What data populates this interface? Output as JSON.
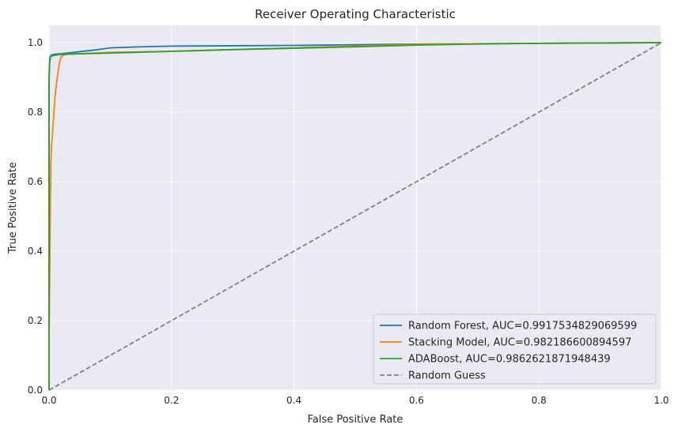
{
  "chart_data": {
    "type": "line",
    "title": "Receiver Operating Characteristic",
    "xlabel": "False Positive Rate",
    "ylabel": "True Positive Rate",
    "xlim": [
      0.0,
      1.0
    ],
    "ylim": [
      0.0,
      1.05
    ],
    "x_ticks": [
      0.0,
      0.2,
      0.4,
      0.6,
      0.8,
      1.0
    ],
    "y_ticks": [
      0.0,
      0.2,
      0.4,
      0.6,
      0.8,
      1.0
    ],
    "x_tick_labels": [
      "0.0",
      "0.2",
      "0.4",
      "0.6",
      "0.8",
      "1.0"
    ],
    "y_tick_labels": [
      "0.0",
      "0.2",
      "0.4",
      "0.6",
      "0.8",
      "1.0"
    ],
    "grid": true,
    "legend_position": "lower-right",
    "series": [
      {
        "name": "Random Forest, AUC=0.9917534829069599",
        "color": "#1f77b4",
        "dashed": false,
        "x": [
          0.0,
          0.0,
          0.001,
          0.002,
          0.003,
          0.005,
          0.01,
          0.02,
          0.03,
          0.04,
          0.05,
          0.06,
          0.07,
          0.08,
          0.1,
          0.15,
          0.2,
          0.3,
          0.4,
          0.5,
          0.6,
          0.8,
          1.0
        ],
        "y": [
          0.0,
          0.9,
          0.95,
          0.96,
          0.963,
          0.965,
          0.967,
          0.968,
          0.97,
          0.972,
          0.974,
          0.976,
          0.978,
          0.98,
          0.985,
          0.988,
          0.99,
          0.991,
          0.992,
          0.994,
          0.996,
          0.998,
          1.0
        ]
      },
      {
        "name": "Stacking Model, AUC=0.982186600894597",
        "color": "#ff7f0e",
        "dashed": false,
        "x": [
          0.0,
          0.0,
          0.001,
          0.002,
          0.003,
          0.004,
          0.005,
          0.006,
          0.008,
          0.01,
          0.012,
          0.015,
          0.018,
          0.02,
          0.025,
          0.03,
          0.05,
          0.1,
          0.2,
          0.3,
          0.4,
          0.5,
          0.6,
          0.7,
          0.8,
          0.9,
          1.0
        ],
        "y": [
          0.0,
          0.15,
          0.31,
          0.51,
          0.65,
          0.71,
          0.72,
          0.75,
          0.8,
          0.85,
          0.88,
          0.92,
          0.95,
          0.96,
          0.965,
          0.967,
          0.968,
          0.972,
          0.975,
          0.98,
          0.985,
          0.99,
          0.995,
          0.997,
          0.998,
          0.999,
          1.0
        ]
      },
      {
        "name": "ADABoost, AUC=0.9862621871948439",
        "color": "#2ca02c",
        "dashed": false,
        "x": [
          0.0,
          0.0,
          0.001,
          0.002,
          0.003,
          0.005,
          0.01,
          0.02,
          0.05,
          0.1,
          0.2,
          0.3,
          0.4,
          0.5,
          0.6,
          0.7,
          0.8,
          0.9,
          1.0
        ],
        "y": [
          0.0,
          0.89,
          0.94,
          0.955,
          0.96,
          0.962,
          0.964,
          0.966,
          0.968,
          0.97,
          0.975,
          0.98,
          0.984,
          0.988,
          0.993,
          0.996,
          0.998,
          0.999,
          1.0
        ]
      },
      {
        "name": "Random Guess",
        "color": "#808080",
        "dashed": true,
        "x": [
          0.0,
          1.0
        ],
        "y": [
          0.0,
          1.0
        ]
      }
    ]
  }
}
